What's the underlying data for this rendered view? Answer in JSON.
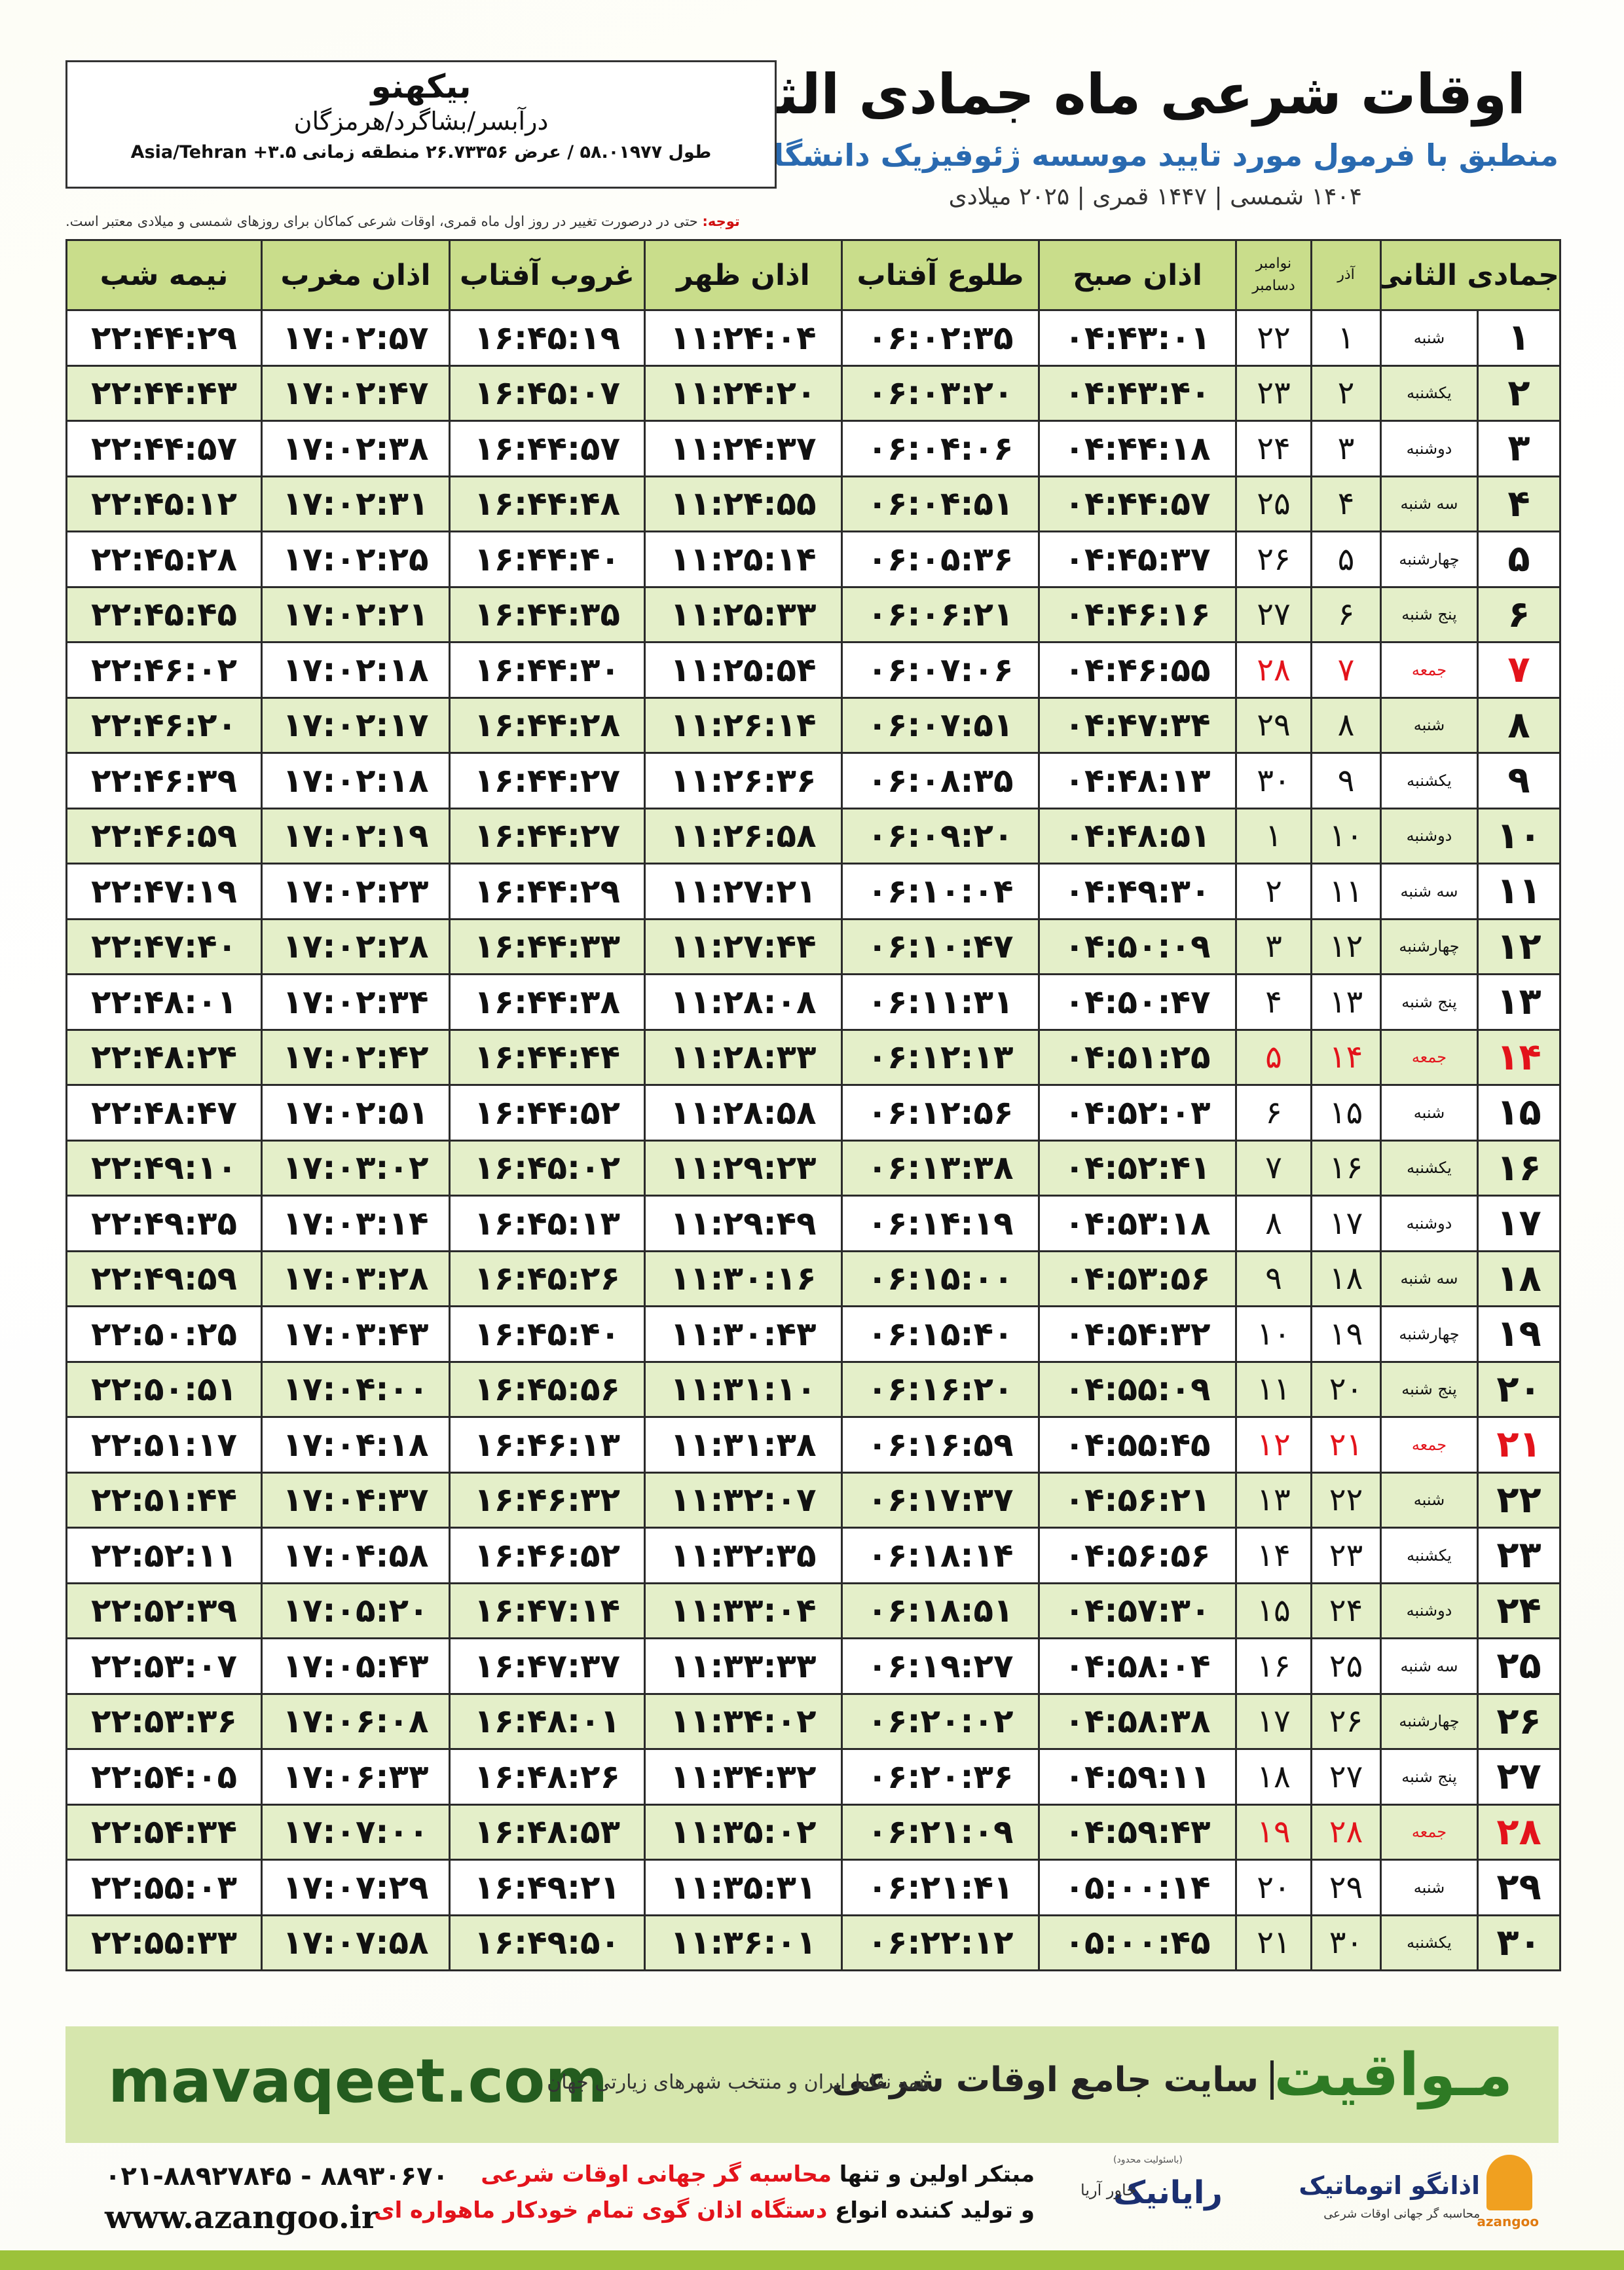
{
  "header": {
    "title": "اوقات شرعی ماه جمادی الثانی",
    "subtitle": "منطبق با فرمول مورد تایید موسسه ژئوفیزیک دانشگاه تهران",
    "years": "۱۴۰۴ شمسی | ۱۴۴۷ قمری | ۲۰۲۵ میلادی"
  },
  "location": {
    "name": "بیکهنو",
    "region": "درآبسر/بشاگرد/هرمزگان",
    "coords": "طول ۵۸.۰۱۹۷۷ / عرض ۲۶.۷۳۳۵۶ منطقه زمانی ۳.۵+ Asia/Tehran"
  },
  "note": {
    "label": "توجه:",
    "text": "حتی در درصورت تغییر در روز اول ماه قمری، اوقات شرعی کماکان برای روزهای شمسی و میلادی معتبر است."
  },
  "table": {
    "columns": {
      "hijri": "جمادی الثانی",
      "azar": "آذر",
      "greg_top": "نوامبر",
      "greg_bottom": "دسامبر",
      "times": [
        "اذان صبح",
        "طلوع آفتاب",
        "اذان ظهر",
        "غروب آفتاب",
        "اذان مغرب",
        "نیمه شب"
      ]
    },
    "rows": [
      {
        "day": "۱",
        "weekday": "شنبه",
        "azar": "۱",
        "greg": "۲۲",
        "times": [
          "۰۴:۴۳:۰۱",
          "۰۶:۰۲:۳۵",
          "۱۱:۲۴:۰۴",
          "۱۶:۴۵:۱۹",
          "۱۷:۰۲:۵۷",
          "۲۲:۴۴:۲۹"
        ],
        "color": "#111111"
      },
      {
        "day": "۲",
        "weekday": "یکشنبه",
        "azar": "۲",
        "greg": "۲۳",
        "times": [
          "۰۴:۴۳:۴۰",
          "۰۶:۰۳:۲۰",
          "۱۱:۲۴:۲۰",
          "۱۶:۴۵:۰۷",
          "۱۷:۰۲:۴۷",
          "۲۲:۴۴:۴۳"
        ],
        "color": "#111111"
      },
      {
        "day": "۳",
        "weekday": "دوشنبه",
        "azar": "۳",
        "greg": "۲۴",
        "times": [
          "۰۴:۴۴:۱۸",
          "۰۶:۰۴:۰۶",
          "۱۱:۲۴:۳۷",
          "۱۶:۴۴:۵۷",
          "۱۷:۰۲:۳۸",
          "۲۲:۴۴:۵۷"
        ],
        "color": "#111111"
      },
      {
        "day": "۴",
        "weekday": "سه شنبه",
        "azar": "۴",
        "greg": "۲۵",
        "times": [
          "۰۴:۴۴:۵۷",
          "۰۶:۰۴:۵۱",
          "۱۱:۲۴:۵۵",
          "۱۶:۴۴:۴۸",
          "۱۷:۰۲:۳۱",
          "۲۲:۴۵:۱۲"
        ],
        "color": "#111111"
      },
      {
        "day": "۵",
        "weekday": "چهارشنبه",
        "azar": "۵",
        "greg": "۲۶",
        "times": [
          "۰۴:۴۵:۳۷",
          "۰۶:۰۵:۳۶",
          "۱۱:۲۵:۱۴",
          "۱۶:۴۴:۴۰",
          "۱۷:۰۲:۲۵",
          "۲۲:۴۵:۲۸"
        ],
        "color": "#111111"
      },
      {
        "day": "۶",
        "weekday": "پنج شنبه",
        "azar": "۶",
        "greg": "۲۷",
        "times": [
          "۰۴:۴۶:۱۶",
          "۰۶:۰۶:۲۱",
          "۱۱:۲۵:۳۳",
          "۱۶:۴۴:۳۵",
          "۱۷:۰۲:۲۱",
          "۲۲:۴۵:۴۵"
        ],
        "color": "#111111"
      },
      {
        "day": "۷",
        "weekday": "جمعه",
        "azar": "۷",
        "greg": "۲۸",
        "times": [
          "۰۴:۴۶:۵۵",
          "۰۶:۰۷:۰۶",
          "۱۱:۲۵:۵۴",
          "۱۶:۴۴:۳۰",
          "۱۷:۰۲:۱۸",
          "۲۲:۴۶:۰۲"
        ],
        "color": "#e3131b"
      },
      {
        "day": "۸",
        "weekday": "شنبه",
        "azar": "۸",
        "greg": "۲۹",
        "times": [
          "۰۴:۴۷:۳۴",
          "۰۶:۰۷:۵۱",
          "۱۱:۲۶:۱۴",
          "۱۶:۴۴:۲۸",
          "۱۷:۰۲:۱۷",
          "۲۲:۴۶:۲۰"
        ],
        "color": "#111111"
      },
      {
        "day": "۹",
        "weekday": "یکشنبه",
        "azar": "۹",
        "greg": "۳۰",
        "times": [
          "۰۴:۴۸:۱۳",
          "۰۶:۰۸:۳۵",
          "۱۱:۲۶:۳۶",
          "۱۶:۴۴:۲۷",
          "۱۷:۰۲:۱۸",
          "۲۲:۴۶:۳۹"
        ],
        "color": "#111111"
      },
      {
        "day": "۱۰",
        "weekday": "دوشنبه",
        "azar": "۱۰",
        "greg": "۱",
        "times": [
          "۰۴:۴۸:۵۱",
          "۰۶:۰۹:۲۰",
          "۱۱:۲۶:۵۸",
          "۱۶:۴۴:۲۷",
          "۱۷:۰۲:۱۹",
          "۲۲:۴۶:۵۹"
        ],
        "color": "#111111"
      },
      {
        "day": "۱۱",
        "weekday": "سه شنبه",
        "azar": "۱۱",
        "greg": "۲",
        "times": [
          "۰۴:۴۹:۳۰",
          "۰۶:۱۰:۰۴",
          "۱۱:۲۷:۲۱",
          "۱۶:۴۴:۲۹",
          "۱۷:۰۲:۲۳",
          "۲۲:۴۷:۱۹"
        ],
        "color": "#111111"
      },
      {
        "day": "۱۲",
        "weekday": "چهارشنبه",
        "azar": "۱۲",
        "greg": "۳",
        "times": [
          "۰۴:۵۰:۰۹",
          "۰۶:۱۰:۴۷",
          "۱۱:۲۷:۴۴",
          "۱۶:۴۴:۳۳",
          "۱۷:۰۲:۲۸",
          "۲۲:۴۷:۴۰"
        ],
        "color": "#111111"
      },
      {
        "day": "۱۳",
        "weekday": "پنج شنبه",
        "azar": "۱۳",
        "greg": "۴",
        "times": [
          "۰۴:۵۰:۴۷",
          "۰۶:۱۱:۳۱",
          "۱۱:۲۸:۰۸",
          "۱۶:۴۴:۳۸",
          "۱۷:۰۲:۳۴",
          "۲۲:۴۸:۰۱"
        ],
        "color": "#111111"
      },
      {
        "day": "۱۴",
        "weekday": "جمعه",
        "azar": "۱۴",
        "greg": "۵",
        "times": [
          "۰۴:۵۱:۲۵",
          "۰۶:۱۲:۱۳",
          "۱۱:۲۸:۳۳",
          "۱۶:۴۴:۴۴",
          "۱۷:۰۲:۴۲",
          "۲۲:۴۸:۲۴"
        ],
        "color": "#e3131b"
      },
      {
        "day": "۱۵",
        "weekday": "شنبه",
        "azar": "۱۵",
        "greg": "۶",
        "times": [
          "۰۴:۵۲:۰۳",
          "۰۶:۱۲:۵۶",
          "۱۱:۲۸:۵۸",
          "۱۶:۴۴:۵۲",
          "۱۷:۰۲:۵۱",
          "۲۲:۴۸:۴۷"
        ],
        "color": "#111111"
      },
      {
        "day": "۱۶",
        "weekday": "یکشنبه",
        "azar": "۱۶",
        "greg": "۷",
        "times": [
          "۰۴:۵۲:۴۱",
          "۰۶:۱۳:۳۸",
          "۱۱:۲۹:۲۳",
          "۱۶:۴۵:۰۲",
          "۱۷:۰۳:۰۲",
          "۲۲:۴۹:۱۰"
        ],
        "color": "#111111"
      },
      {
        "day": "۱۷",
        "weekday": "دوشنبه",
        "azar": "۱۷",
        "greg": "۸",
        "times": [
          "۰۴:۵۳:۱۸",
          "۰۶:۱۴:۱۹",
          "۱۱:۲۹:۴۹",
          "۱۶:۴۵:۱۳",
          "۱۷:۰۳:۱۴",
          "۲۲:۴۹:۳۵"
        ],
        "color": "#111111"
      },
      {
        "day": "۱۸",
        "weekday": "سه شنبه",
        "azar": "۱۸",
        "greg": "۹",
        "times": [
          "۰۴:۵۳:۵۶",
          "۰۶:۱۵:۰۰",
          "۱۱:۳۰:۱۶",
          "۱۶:۴۵:۲۶",
          "۱۷:۰۳:۲۸",
          "۲۲:۴۹:۵۹"
        ],
        "color": "#111111"
      },
      {
        "day": "۱۹",
        "weekday": "چهارشنبه",
        "azar": "۱۹",
        "greg": "۱۰",
        "times": [
          "۰۴:۵۴:۳۲",
          "۰۶:۱۵:۴۰",
          "۱۱:۳۰:۴۳",
          "۱۶:۴۵:۴۰",
          "۱۷:۰۳:۴۳",
          "۲۲:۵۰:۲۵"
        ],
        "color": "#111111"
      },
      {
        "day": "۲۰",
        "weekday": "پنج شنبه",
        "azar": "۲۰",
        "greg": "۱۱",
        "times": [
          "۰۴:۵۵:۰۹",
          "۰۶:۱۶:۲۰",
          "۱۱:۳۱:۱۰",
          "۱۶:۴۵:۵۶",
          "۱۷:۰۴:۰۰",
          "۲۲:۵۰:۵۱"
        ],
        "color": "#111111"
      },
      {
        "day": "۲۱",
        "weekday": "جمعه",
        "azar": "۲۱",
        "greg": "۱۲",
        "times": [
          "۰۴:۵۵:۴۵",
          "۰۶:۱۶:۵۹",
          "۱۱:۳۱:۳۸",
          "۱۶:۴۶:۱۳",
          "۱۷:۰۴:۱۸",
          "۲۲:۵۱:۱۷"
        ],
        "color": "#e3131b"
      },
      {
        "day": "۲۲",
        "weekday": "شنبه",
        "azar": "۲۲",
        "greg": "۱۳",
        "times": [
          "۰۴:۵۶:۲۱",
          "۰۶:۱۷:۳۷",
          "۱۱:۳۲:۰۷",
          "۱۶:۴۶:۳۲",
          "۱۷:۰۴:۳۷",
          "۲۲:۵۱:۴۴"
        ],
        "color": "#111111"
      },
      {
        "day": "۲۳",
        "weekday": "یکشنبه",
        "azar": "۲۳",
        "greg": "۱۴",
        "times": [
          "۰۴:۵۶:۵۶",
          "۰۶:۱۸:۱۴",
          "۱۱:۳۲:۳۵",
          "۱۶:۴۶:۵۲",
          "۱۷:۰۴:۵۸",
          "۲۲:۵۲:۱۱"
        ],
        "color": "#111111"
      },
      {
        "day": "۲۴",
        "weekday": "دوشنبه",
        "azar": "۲۴",
        "greg": "۱۵",
        "times": [
          "۰۴:۵۷:۳۰",
          "۰۶:۱۸:۵۱",
          "۱۱:۳۳:۰۴",
          "۱۶:۴۷:۱۴",
          "۱۷:۰۵:۲۰",
          "۲۲:۵۲:۳۹"
        ],
        "color": "#111111"
      },
      {
        "day": "۲۵",
        "weekday": "سه شنبه",
        "azar": "۲۵",
        "greg": "۱۶",
        "times": [
          "۰۴:۵۸:۰۴",
          "۰۶:۱۹:۲۷",
          "۱۱:۳۳:۳۳",
          "۱۶:۴۷:۳۷",
          "۱۷:۰۵:۴۳",
          "۲۲:۵۳:۰۷"
        ],
        "color": "#111111"
      },
      {
        "day": "۲۶",
        "weekday": "چهارشنبه",
        "azar": "۲۶",
        "greg": "۱۷",
        "times": [
          "۰۴:۵۸:۳۸",
          "۰۶:۲۰:۰۲",
          "۱۱:۳۴:۰۲",
          "۱۶:۴۸:۰۱",
          "۱۷:۰۶:۰۸",
          "۲۲:۵۳:۳۶"
        ],
        "color": "#111111"
      },
      {
        "day": "۲۷",
        "weekday": "پنج شنبه",
        "azar": "۲۷",
        "greg": "۱۸",
        "times": [
          "۰۴:۵۹:۱۱",
          "۰۶:۲۰:۳۶",
          "۱۱:۳۴:۳۲",
          "۱۶:۴۸:۲۶",
          "۱۷:۰۶:۳۳",
          "۲۲:۵۴:۰۵"
        ],
        "color": "#111111"
      },
      {
        "day": "۲۸",
        "weekday": "جمعه",
        "azar": "۲۸",
        "greg": "۱۹",
        "times": [
          "۰۴:۵۹:۴۳",
          "۰۶:۲۱:۰۹",
          "۱۱:۳۵:۰۲",
          "۱۶:۴۸:۵۳",
          "۱۷:۰۷:۰۰",
          "۲۲:۵۴:۳۴"
        ],
        "color": "#e3131b"
      },
      {
        "day": "۲۹",
        "weekday": "شنبه",
        "azar": "۲۹",
        "greg": "۲۰",
        "times": [
          "۰۵:۰۰:۱۴",
          "۰۶:۲۱:۴۱",
          "۱۱:۳۵:۳۱",
          "۱۶:۴۹:۲۱",
          "۱۷:۰۷:۲۹",
          "۲۲:۵۵:۰۳"
        ],
        "color": "#111111"
      },
      {
        "day": "۳۰",
        "weekday": "یکشنبه",
        "azar": "۳۰",
        "greg": "۲۱",
        "times": [
          "۰۵:۰۰:۴۵",
          "۰۶:۲۲:۱۲",
          "۱۱:۳۶:۰۱",
          "۱۶:۴۹:۵۰",
          "۱۷:۰۷:۵۸",
          "۲۲:۵۵:۳۳"
        ],
        "color": "#111111"
      }
    ]
  },
  "banner": {
    "brand": "مـواقیت",
    "slogan": "سایت جامع اوقات شرعی",
    "tagline": "همه نقاط ایران و منتخب شهرهای زیارتی جهان",
    "url": "mavaqeet.com"
  },
  "footer": {
    "phone": "۰۲۱-۸۸۹۲۷۸۴۵ - ۸۸۹۳۰۶۷۰",
    "site": "www.azangoo.ir",
    "line1": {
      "a": "مبتکر اولین و تنها",
      "b": "محاسبه گر جهانی اوقات شرعی"
    },
    "line2": {
      "a": "و تولید کننده انواع",
      "b": "دستگاه اذان گوی تمام خودکار ماهواره ای"
    },
    "rayanik": "رایانیک",
    "khavar": "خاور آریا",
    "limited": "(باسئولیت محدود)",
    "azangoo_fa": "اذانگو اتوماتیک",
    "azangoo_sub": "محاسبه گر جهانی اوقات شرعی",
    "azangoo_en": "azangoo"
  }
}
